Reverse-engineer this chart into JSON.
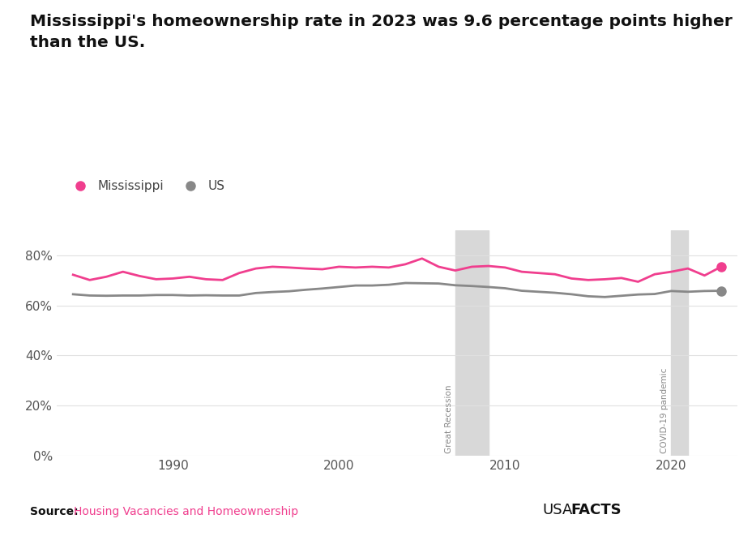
{
  "title_line1": "Mississippi's homeownership rate in 2023 was 9.6 percentage points higher",
  "title_line2": "than the US.",
  "ms_years": [
    1984,
    1985,
    1986,
    1987,
    1988,
    1989,
    1990,
    1991,
    1992,
    1993,
    1994,
    1995,
    1996,
    1997,
    1998,
    1999,
    2000,
    2001,
    2002,
    2003,
    2004,
    2005,
    2006,
    2007,
    2008,
    2009,
    2010,
    2011,
    2012,
    2013,
    2014,
    2015,
    2016,
    2017,
    2018,
    2019,
    2020,
    2021,
    2022,
    2023
  ],
  "ms_values": [
    72.3,
    70.2,
    71.5,
    73.5,
    71.8,
    70.5,
    70.8,
    71.5,
    70.5,
    70.2,
    73.0,
    74.8,
    75.5,
    75.2,
    74.8,
    74.5,
    75.5,
    75.2,
    75.5,
    75.2,
    76.5,
    78.8,
    75.5,
    74.0,
    75.5,
    75.8,
    75.2,
    73.5,
    73.0,
    72.5,
    70.8,
    70.2,
    70.5,
    71.0,
    69.5,
    72.5,
    73.5,
    74.8,
    72.0,
    75.5
  ],
  "us_years": [
    1984,
    1985,
    1986,
    1987,
    1988,
    1989,
    1990,
    1991,
    1992,
    1993,
    1994,
    1995,
    1996,
    1997,
    1998,
    1999,
    2000,
    2001,
    2002,
    2003,
    2004,
    2005,
    2006,
    2007,
    2008,
    2009,
    2010,
    2011,
    2012,
    2013,
    2014,
    2015,
    2016,
    2017,
    2018,
    2019,
    2020,
    2021,
    2022,
    2023
  ],
  "us_values": [
    64.5,
    64.0,
    63.9,
    64.0,
    64.0,
    64.2,
    64.2,
    64.0,
    64.1,
    64.0,
    64.0,
    65.0,
    65.4,
    65.7,
    66.3,
    66.8,
    67.4,
    68.0,
    68.0,
    68.3,
    69.0,
    68.9,
    68.8,
    68.1,
    67.8,
    67.4,
    66.9,
    65.9,
    65.5,
    65.1,
    64.5,
    63.7,
    63.4,
    63.9,
    64.4,
    64.6,
    65.8,
    65.5,
    65.8,
    65.9
  ],
  "ms_color": "#f03e8e",
  "us_color": "#888888",
  "recession_start": 2007,
  "recession_end": 2009,
  "covid_start": 2020,
  "covid_end": 2021,
  "recession_color": "#d8d8d8",
  "covid_color": "#d8d8d8",
  "recession_label": "Great Recession",
  "covid_label": "COVID-19 pandemic",
  "ms_label": "Mississippi",
  "us_label": "US",
  "source_label": "Source:",
  "source_text": "Housing Vacancies and Homeownership",
  "ylim": [
    0,
    90
  ],
  "yticks": [
    0,
    20,
    40,
    60,
    80
  ],
  "ytick_labels": [
    "0%",
    "20%",
    "40%",
    "60%",
    "80%"
  ],
  "xlim": [
    1983,
    2024
  ],
  "xticks": [
    1990,
    2000,
    2010,
    2020
  ],
  "background_color": "#ffffff",
  "grid_color": "#e0e0e0",
  "line_width": 2.0,
  "endpoint_marker_size": 8
}
